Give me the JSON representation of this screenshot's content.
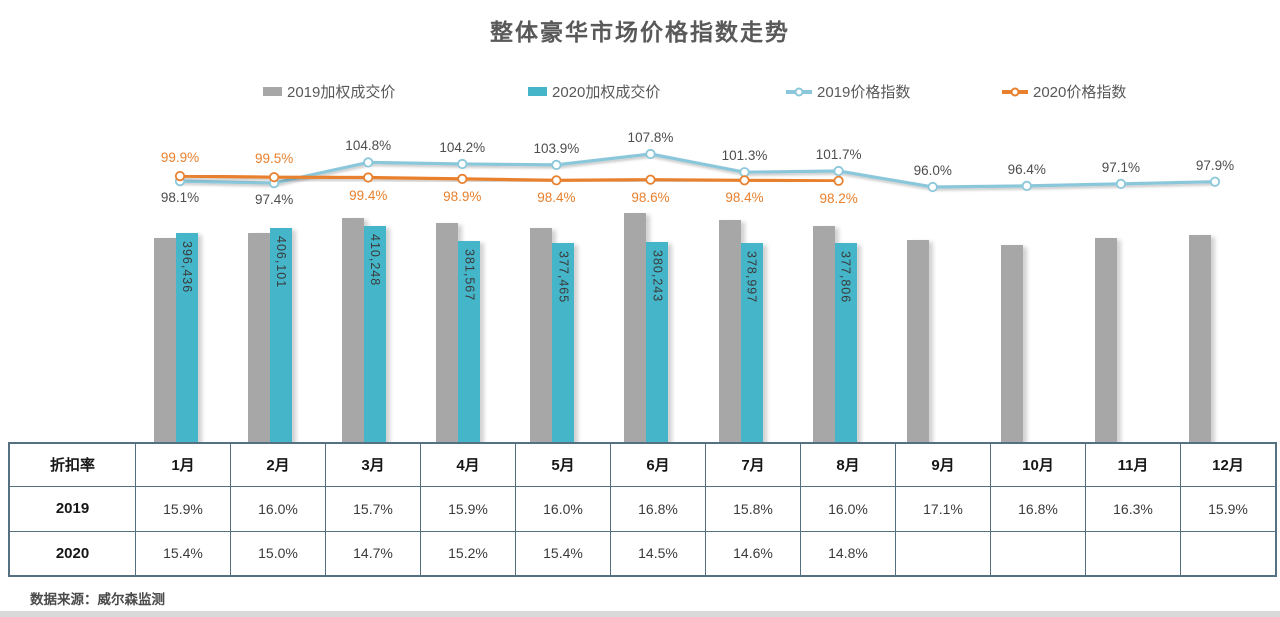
{
  "footer": {
    "source": "数据来源：威尔森监测"
  },
  "chart_data": {
    "type": "combo",
    "title": "整体豪华市场价格指数走势",
    "categories": [
      "1月",
      "2月",
      "3月",
      "4月",
      "5月",
      "6月",
      "7月",
      "8月",
      "9月",
      "10月",
      "11月",
      "12月"
    ],
    "legend_position": "top",
    "axes_visible": false,
    "grid": false,
    "series": [
      {
        "name": "2019加权成交价",
        "type": "bar",
        "color": "#a7a7a7",
        "estimated": true,
        "values": [
          387500,
          396900,
          425000,
          415600,
          406200,
          434300,
          421200,
          410000,
          383800,
          374400,
          387500,
          393100
        ]
      },
      {
        "name": "2020加权成交价",
        "type": "bar",
        "color": "#45b6c9",
        "values": [
          396436,
          406101,
          410248,
          381567,
          377465,
          380243,
          378997,
          377806,
          null,
          null,
          null,
          null
        ],
        "labels": [
          "396,436",
          "406,101",
          "410,248",
          "381,567",
          "377,465",
          "380,243",
          "378,997",
          "377,806",
          null,
          null,
          null,
          null
        ]
      },
      {
        "name": "2019价格指数",
        "type": "line",
        "color": "#8bc7da",
        "label_color": "#4d4d4d",
        "values": [
          98.1,
          97.4,
          104.8,
          104.2,
          103.9,
          107.8,
          101.3,
          101.7,
          96.0,
          96.4,
          97.1,
          97.9
        ],
        "labels": [
          "98.1%",
          "97.4%",
          "104.8%",
          "104.2%",
          "103.9%",
          "107.8%",
          "101.3%",
          "101.7%",
          "96.0%",
          "96.4%",
          "97.1%",
          "97.9%"
        ]
      },
      {
        "name": "2020价格指数",
        "type": "line",
        "color": "#e8802e",
        "label_color": "#e8802e",
        "values": [
          99.9,
          99.5,
          99.4,
          98.9,
          98.4,
          98.6,
          98.4,
          98.2,
          null,
          null,
          null,
          null
        ],
        "labels": [
          "99.9%",
          "99.5%",
          "99.4%",
          "98.9%",
          "98.4%",
          "98.6%",
          "98.4%",
          "98.2%",
          null,
          null,
          null,
          null
        ]
      }
    ]
  },
  "table": {
    "corner_header": "折扣率",
    "columns": [
      "1月",
      "2月",
      "3月",
      "4月",
      "5月",
      "6月",
      "7月",
      "8月",
      "9月",
      "10月",
      "11月",
      "12月"
    ],
    "rows": [
      {
        "label": "2019",
        "values": [
          "15.9%",
          "16.0%",
          "15.7%",
          "15.9%",
          "16.0%",
          "16.8%",
          "15.8%",
          "16.0%",
          "17.1%",
          "16.8%",
          "16.3%",
          "15.9%"
        ]
      },
      {
        "label": "2020",
        "values": [
          "15.4%",
          "15.0%",
          "14.7%",
          "15.2%",
          "15.4%",
          "14.5%",
          "14.6%",
          "14.8%",
          "",
          "",
          "",
          ""
        ]
      }
    ]
  }
}
